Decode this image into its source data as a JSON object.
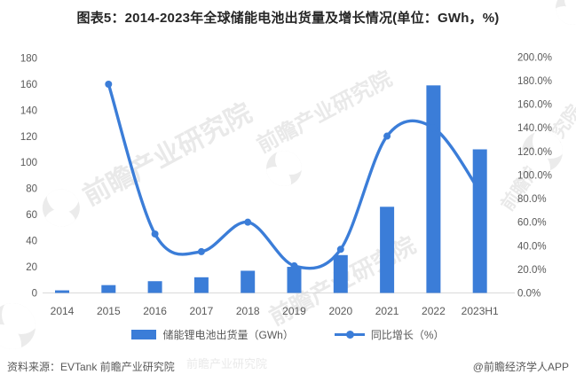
{
  "title": "图表5：2014-2023年全球储能电池出货量及增长情况(单位：GWh，%)",
  "chart_data": {
    "type": "combo-bar-line",
    "title": "2014-2023年全球储能电池出货量及增长情况",
    "unit": "GWh，%",
    "categories": [
      "2014",
      "2015",
      "2016",
      "2017",
      "2018",
      "2019",
      "2020",
      "2021",
      "2022",
      "2023H1"
    ],
    "series": [
      {
        "name": "储能锂电池出货量（GWh）",
        "type": "bar",
        "axis": "left",
        "values": [
          2,
          6,
          9,
          12,
          17,
          20,
          29,
          66,
          159,
          110
        ]
      },
      {
        "name": "同比增长（%）",
        "type": "line",
        "axis": "right",
        "values": [
          null,
          177,
          50,
          35,
          60,
          23,
          37,
          133,
          140,
          86
        ]
      }
    ],
    "left_axis": {
      "min": 0,
      "max": 180,
      "ticks": [
        0,
        20,
        40,
        60,
        80,
        100,
        120,
        140,
        160,
        180
      ]
    },
    "right_axis": {
      "min": 0,
      "max": 200,
      "tick_step": 20,
      "tick_labels": [
        "0.0%",
        "20.0%",
        "40.0%",
        "60.0%",
        "80.0%",
        "100.0%",
        "120.0%",
        "140.0%",
        "160.0%",
        "180.0%",
        "200.0%"
      ]
    },
    "grid": false,
    "legend_position": "bottom",
    "accent_color": "#3B7DD8",
    "axis_text_color": "#595959",
    "baseline_color": "#d9d9d9"
  },
  "legend": {
    "items": [
      {
        "label": "储能锂电池出货量（GWh）",
        "swatch": "bar-swatch"
      },
      {
        "label": "同比增长（%）",
        "swatch": "line-swatch"
      }
    ]
  },
  "footer": {
    "source": "资料来源：EVTank 前瞻产业研究院",
    "credit": "@前瞻经济学人APP"
  },
  "watermark": {
    "text": "前瞻产业研究院"
  }
}
